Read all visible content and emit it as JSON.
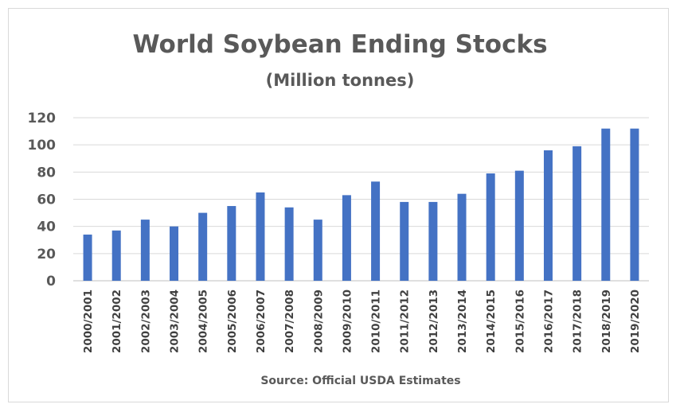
{
  "chart_data": {
    "type": "bar",
    "title": "World Soybean Ending Stocks",
    "subtitle": "(Million tonnes)",
    "source": "Source: Official USDA Estimates",
    "categories": [
      "2000/2001",
      "2001/2002",
      "2002/2003",
      "2003/2004",
      "2004/2005",
      "2005/2006",
      "2006/2007",
      "2007/2008",
      "2008/2009",
      "2009/2010",
      "2010/2011",
      "2011/2012",
      "2012/2013",
      "2013/2014",
      "2014/2015",
      "2015/2016",
      "2016/2017",
      "2017/2018",
      "2018/2019",
      "2019/2020"
    ],
    "values": [
      34,
      37,
      45,
      40,
      50,
      55,
      65,
      54,
      45,
      63,
      73,
      58,
      58,
      64,
      79,
      81,
      96,
      99,
      112,
      112
    ],
    "ylim": [
      0,
      120
    ],
    "yticks": [
      "0",
      "20",
      "40",
      "60",
      "80",
      "100",
      "120"
    ],
    "grid": true,
    "legend": "none",
    "bar_color": "#4472c4"
  }
}
